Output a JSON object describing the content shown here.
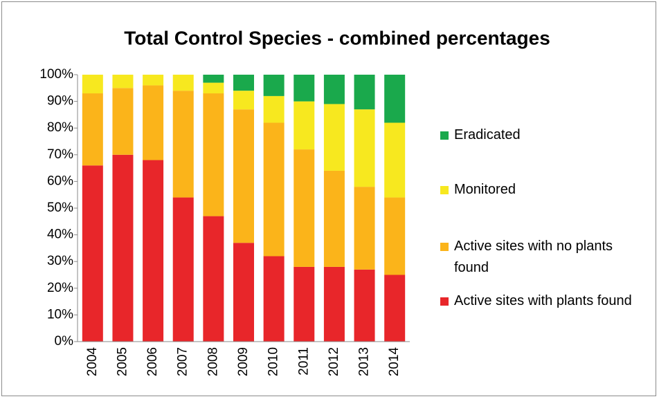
{
  "chart_data": {
    "type": "stacked_bar",
    "title": "Total Control Species - combined percentages",
    "categories": [
      "2004",
      "2005",
      "2006",
      "2007",
      "2008",
      "2009",
      "2010",
      "2011",
      "2012",
      "2013",
      "2014"
    ],
    "series": [
      {
        "name": "Active sites with plants found",
        "color": "#e8262a",
        "values": [
          66,
          70,
          68,
          54,
          47,
          37,
          32,
          28,
          28,
          27,
          25
        ]
      },
      {
        "name": "Active sites with no plants found",
        "color": "#fbb41a",
        "values": [
          27,
          25,
          28,
          40,
          46,
          50,
          50,
          44,
          36,
          31,
          29
        ]
      },
      {
        "name": "Monitored",
        "color": "#f7e81f",
        "values": [
          7,
          5,
          4,
          6,
          4,
          7,
          10,
          18,
          25,
          29,
          28
        ]
      },
      {
        "name": "Eradicated",
        "color": "#1aa94c",
        "values": [
          0,
          0,
          0,
          0,
          3,
          6,
          8,
          10,
          11,
          13,
          18
        ]
      }
    ],
    "ylim": [
      0,
      100
    ],
    "yticks": [
      {
        "value": 0,
        "label": "0%"
      },
      {
        "value": 10,
        "label": "10%"
      },
      {
        "value": 20,
        "label": "20%"
      },
      {
        "value": 30,
        "label": "30%"
      },
      {
        "value": 40,
        "label": "40%"
      },
      {
        "value": 50,
        "label": "50%"
      },
      {
        "value": 60,
        "label": "60%"
      },
      {
        "value": 70,
        "label": "70%"
      },
      {
        "value": 80,
        "label": "80%"
      },
      {
        "value": 90,
        "label": "90%"
      },
      {
        "value": 100,
        "label": "100%"
      }
    ],
    "grid": false,
    "legend": "right"
  }
}
